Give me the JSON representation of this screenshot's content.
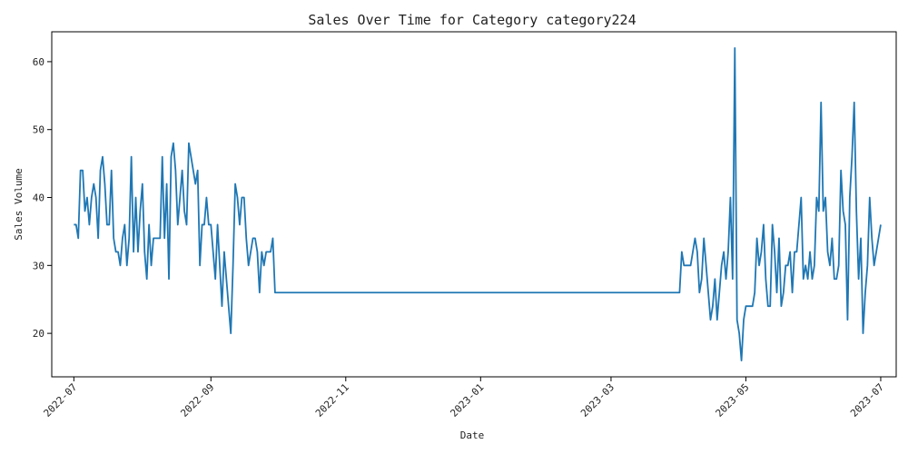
{
  "chart_data": {
    "type": "line",
    "title": "Sales Over Time for Category category224",
    "xlabel": "Date",
    "ylabel": "Sales Volume",
    "x_ticks": [
      "2022-07",
      "2022-09",
      "2022-11",
      "2023-01",
      "2023-03",
      "2023-05",
      "2023-07"
    ],
    "y_ticks": [
      20,
      30,
      40,
      50,
      60
    ],
    "ylim": [
      13.6,
      64.4
    ],
    "xlim": [
      "2022-06-21",
      "2023-07-08"
    ],
    "grid": false,
    "line_color": "#1f77b4",
    "series": [
      {
        "values": [
          [
            "2022-07-01",
            36
          ],
          [
            "2022-07-02",
            36
          ],
          [
            "2022-07-03",
            34
          ],
          [
            "2022-07-04",
            44
          ],
          [
            "2022-07-05",
            44
          ],
          [
            "2022-07-06",
            38
          ],
          [
            "2022-07-07",
            40
          ],
          [
            "2022-07-08",
            36
          ],
          [
            "2022-07-09",
            40
          ],
          [
            "2022-07-10",
            42
          ],
          [
            "2022-07-11",
            40
          ],
          [
            "2022-07-12",
            34
          ],
          [
            "2022-07-13",
            44
          ],
          [
            "2022-07-14",
            46
          ],
          [
            "2022-07-15",
            42
          ],
          [
            "2022-07-16",
            36
          ],
          [
            "2022-07-17",
            36
          ],
          [
            "2022-07-18",
            44
          ],
          [
            "2022-07-19",
            34
          ],
          [
            "2022-07-20",
            32
          ],
          [
            "2022-07-21",
            32
          ],
          [
            "2022-07-22",
            30
          ],
          [
            "2022-07-23",
            34
          ],
          [
            "2022-07-24",
            36
          ],
          [
            "2022-07-25",
            30
          ],
          [
            "2022-07-26",
            34
          ],
          [
            "2022-07-27",
            46
          ],
          [
            "2022-07-28",
            32
          ],
          [
            "2022-07-29",
            40
          ],
          [
            "2022-07-30",
            32
          ],
          [
            "2022-07-31",
            38
          ],
          [
            "2022-08-01",
            42
          ],
          [
            "2022-08-02",
            32
          ],
          [
            "2022-08-03",
            28
          ],
          [
            "2022-08-04",
            36
          ],
          [
            "2022-08-05",
            30
          ],
          [
            "2022-08-06",
            34
          ],
          [
            "2022-08-07",
            34
          ],
          [
            "2022-08-08",
            34
          ],
          [
            "2022-08-09",
            34
          ],
          [
            "2022-08-10",
            46
          ],
          [
            "2022-08-11",
            34
          ],
          [
            "2022-08-12",
            42
          ],
          [
            "2022-08-13",
            28
          ],
          [
            "2022-08-14",
            46
          ],
          [
            "2022-08-15",
            48
          ],
          [
            "2022-08-16",
            44
          ],
          [
            "2022-08-17",
            36
          ],
          [
            "2022-08-18",
            40
          ],
          [
            "2022-08-19",
            44
          ],
          [
            "2022-08-20",
            38
          ],
          [
            "2022-08-21",
            36
          ],
          [
            "2022-08-22",
            48
          ],
          [
            "2022-08-23",
            46
          ],
          [
            "2022-08-24",
            44
          ],
          [
            "2022-08-25",
            42
          ],
          [
            "2022-08-26",
            44
          ],
          [
            "2022-08-27",
            30
          ],
          [
            "2022-08-28",
            36
          ],
          [
            "2022-08-29",
            36
          ],
          [
            "2022-08-30",
            40
          ],
          [
            "2022-08-31",
            36
          ],
          [
            "2022-09-01",
            36
          ],
          [
            "2022-09-02",
            32
          ],
          [
            "2022-09-03",
            28
          ],
          [
            "2022-09-04",
            36
          ],
          [
            "2022-09-05",
            30
          ],
          [
            "2022-09-06",
            24
          ],
          [
            "2022-09-07",
            32
          ],
          [
            "2022-09-08",
            28
          ],
          [
            "2022-09-09",
            24
          ],
          [
            "2022-09-10",
            20
          ],
          [
            "2022-09-11",
            30
          ],
          [
            "2022-09-12",
            42
          ],
          [
            "2022-09-13",
            40
          ],
          [
            "2022-09-14",
            36
          ],
          [
            "2022-09-15",
            40
          ],
          [
            "2022-09-16",
            40
          ],
          [
            "2022-09-17",
            34
          ],
          [
            "2022-09-18",
            30
          ],
          [
            "2022-09-19",
            32
          ],
          [
            "2022-09-20",
            34
          ],
          [
            "2022-09-21",
            34
          ],
          [
            "2022-09-22",
            32
          ],
          [
            "2022-09-23",
            26
          ],
          [
            "2022-09-24",
            32
          ],
          [
            "2022-09-25",
            30
          ],
          [
            "2022-09-26",
            32
          ],
          [
            "2022-09-27",
            32
          ],
          [
            "2022-09-28",
            32
          ],
          [
            "2022-09-29",
            34
          ],
          [
            "2022-09-30",
            26
          ],
          [
            "2023-04-01",
            26
          ],
          [
            "2023-04-02",
            32
          ],
          [
            "2023-04-03",
            30
          ],
          [
            "2023-04-04",
            30
          ],
          [
            "2023-04-05",
            30
          ],
          [
            "2023-04-06",
            30
          ],
          [
            "2023-04-07",
            32
          ],
          [
            "2023-04-08",
            34
          ],
          [
            "2023-04-09",
            32
          ],
          [
            "2023-04-10",
            26
          ],
          [
            "2023-04-11",
            28
          ],
          [
            "2023-04-12",
            34
          ],
          [
            "2023-04-13",
            30
          ],
          [
            "2023-04-14",
            26
          ],
          [
            "2023-04-15",
            22
          ],
          [
            "2023-04-16",
            24
          ],
          [
            "2023-04-17",
            28
          ],
          [
            "2023-04-18",
            22
          ],
          [
            "2023-04-19",
            26
          ],
          [
            "2023-04-20",
            30
          ],
          [
            "2023-04-21",
            32
          ],
          [
            "2023-04-22",
            28
          ],
          [
            "2023-04-23",
            32
          ],
          [
            "2023-04-24",
            40
          ],
          [
            "2023-04-25",
            28
          ],
          [
            "2023-04-26",
            62
          ],
          [
            "2023-04-27",
            22
          ],
          [
            "2023-04-28",
            20
          ],
          [
            "2023-04-29",
            16
          ],
          [
            "2023-04-30",
            22
          ],
          [
            "2023-05-01",
            24
          ],
          [
            "2023-05-02",
            24
          ],
          [
            "2023-05-03",
            24
          ],
          [
            "2023-05-04",
            24
          ],
          [
            "2023-05-05",
            26
          ],
          [
            "2023-05-06",
            34
          ],
          [
            "2023-05-07",
            30
          ],
          [
            "2023-05-08",
            32
          ],
          [
            "2023-05-09",
            36
          ],
          [
            "2023-05-10",
            28
          ],
          [
            "2023-05-11",
            24
          ],
          [
            "2023-05-12",
            24
          ],
          [
            "2023-05-13",
            36
          ],
          [
            "2023-05-14",
            32
          ],
          [
            "2023-05-15",
            26
          ],
          [
            "2023-05-16",
            34
          ],
          [
            "2023-05-17",
            24
          ],
          [
            "2023-05-18",
            26
          ],
          [
            "2023-05-19",
            30
          ],
          [
            "2023-05-20",
            30
          ],
          [
            "2023-05-21",
            32
          ],
          [
            "2023-05-22",
            26
          ],
          [
            "2023-05-23",
            32
          ],
          [
            "2023-05-24",
            32
          ],
          [
            "2023-05-25",
            36
          ],
          [
            "2023-05-26",
            40
          ],
          [
            "2023-05-27",
            28
          ],
          [
            "2023-05-28",
            30
          ],
          [
            "2023-05-29",
            28
          ],
          [
            "2023-05-30",
            32
          ],
          [
            "2023-05-31",
            28
          ],
          [
            "2023-06-01",
            30
          ],
          [
            "2023-06-02",
            40
          ],
          [
            "2023-06-03",
            38
          ],
          [
            "2023-06-04",
            54
          ],
          [
            "2023-06-05",
            38
          ],
          [
            "2023-06-06",
            40
          ],
          [
            "2023-06-07",
            32
          ],
          [
            "2023-06-08",
            30
          ],
          [
            "2023-06-09",
            34
          ],
          [
            "2023-06-10",
            28
          ],
          [
            "2023-06-11",
            28
          ],
          [
            "2023-06-12",
            30
          ],
          [
            "2023-06-13",
            44
          ],
          [
            "2023-06-14",
            38
          ],
          [
            "2023-06-15",
            36
          ],
          [
            "2023-06-16",
            22
          ],
          [
            "2023-06-17",
            40
          ],
          [
            "2023-06-18",
            46
          ],
          [
            "2023-06-19",
            54
          ],
          [
            "2023-06-20",
            38
          ],
          [
            "2023-06-21",
            28
          ],
          [
            "2023-06-22",
            34
          ],
          [
            "2023-06-23",
            20
          ],
          [
            "2023-06-24",
            26
          ],
          [
            "2023-06-25",
            30
          ],
          [
            "2023-06-26",
            40
          ],
          [
            "2023-06-27",
            34
          ],
          [
            "2023-06-28",
            30
          ],
          [
            "2023-06-29",
            32
          ],
          [
            "2023-06-30",
            34
          ],
          [
            "2023-07-01",
            36
          ]
        ]
      }
    ]
  }
}
